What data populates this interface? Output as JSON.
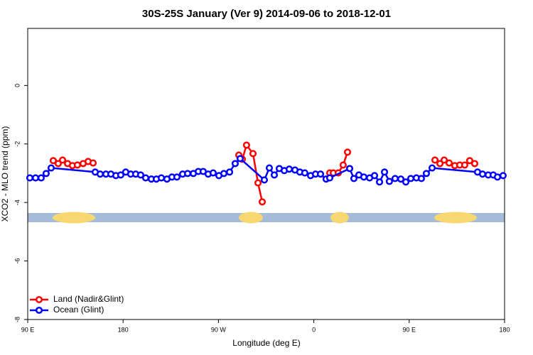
{
  "chart_data": {
    "type": "line",
    "title": "30S-25S January (Ver 9)   2014-09-06 to 2018-12-01",
    "x_label": "Longitude (deg E)",
    "y_label": "XCO2 - MLO trend (ppm)",
    "xlim": [
      90,
      540
    ],
    "ylim": [
      -8,
      1.95
    ],
    "xticks": [
      {
        "value": 90,
        "label": "90 E"
      },
      180,
      {
        "value": 270,
        "label": "90 W"
      },
      {
        "value": 360,
        "label": "0"
      },
      {
        "value": 450,
        "label": "90 E"
      },
      {
        "value": 540,
        "label": "180"
      }
    ],
    "yticks": [
      0,
      -2,
      -4,
      -6,
      -8
    ],
    "legend": "bottom-left",
    "series": [
      {
        "name": "Land (Nadir&Glint)",
        "color": "#ff0000",
        "x": [
          114.1,
          118.8,
          122.9,
          127.6,
          132.2,
          136.9,
          142.3,
          147.0,
          151.7,
          200,
          289.2,
          292.5,
          296.5,
          302.6,
          307.3,
          311.3,
          340,
          375.0,
          378.4,
          383.1,
          387.7,
          391.8,
          420,
          474.3,
          479.0,
          483.0,
          487.7,
          493.0,
          497.7,
          502.4,
          507.1,
          511.8
        ],
        "values": [
          -2.57,
          -2.67,
          -2.55,
          -2.67,
          -2.74,
          -2.72,
          -2.67,
          -2.6,
          -2.65,
          null,
          -2.38,
          -2.52,
          -2.04,
          -2.33,
          -3.33,
          -3.98,
          null,
          -2.99,
          -2.99,
          -2.99,
          -2.72,
          -2.28,
          null,
          -2.55,
          -2.67,
          -2.55,
          -2.65,
          -2.74,
          -2.72,
          -2.72,
          -2.57,
          -2.67
        ]
      },
      {
        "name": "Ocean (Glint)",
        "color": "#0000ff",
        "x": [
          92.0,
          97.4,
          102.7,
          107.4,
          112.1,
          153.7,
          158.4,
          163.8,
          168.5,
          173.2,
          177.8,
          182.5,
          187.2,
          191.9,
          196.6,
          201.3,
          206.7,
          211.4,
          216.1,
          221.4,
          226.1,
          230.8,
          236.2,
          240.9,
          246.3,
          251.0,
          255.6,
          260.3,
          265.0,
          270.4,
          275.1,
          280.5,
          285.8,
          290.5,
          313.3,
          318.0,
          322.7,
          327.4,
          332.1,
          336.8,
          342.2,
          346.8,
          351.5,
          356.9,
          361.6,
          366.3,
          371.6,
          375.0,
          393.8,
          397.8,
          402.5,
          407.2,
          412.6,
          417.3,
          422.0,
          426.7,
          431.3,
          436.7,
          442.1,
          446.8,
          451.5,
          456.8,
          461.5,
          466.2,
          471.6,
          514.5,
          519.2,
          524.6,
          529.3,
          533.3,
          538.6
        ],
        "values": [
          -3.16,
          -3.16,
          -3.16,
          -3.01,
          -2.82,
          -2.96,
          -3.03,
          -3.03,
          -3.03,
          -3.08,
          -3.06,
          -2.96,
          -3.03,
          -3.03,
          -3.06,
          -3.16,
          -3.2,
          -3.2,
          -3.16,
          -3.2,
          -3.13,
          -3.13,
          -3.03,
          -3.01,
          -3.01,
          -2.94,
          -2.94,
          -3.03,
          -2.99,
          -3.08,
          -3.01,
          -2.96,
          -2.67,
          -2.5,
          -3.23,
          -2.82,
          -3.06,
          -2.84,
          -2.91,
          -2.86,
          -2.89,
          -2.96,
          -2.99,
          -3.08,
          -3.03,
          -3.03,
          -3.2,
          -3.16,
          -2.84,
          -3.18,
          -3.06,
          -3.13,
          -3.16,
          -3.08,
          -3.3,
          -2.96,
          -3.28,
          -3.18,
          -3.2,
          -3.3,
          -3.18,
          -3.16,
          -3.18,
          -3.01,
          -2.82,
          -2.96,
          -3.03,
          -3.06,
          -3.06,
          -3.13,
          -3.08
        ]
      }
    ]
  }
}
